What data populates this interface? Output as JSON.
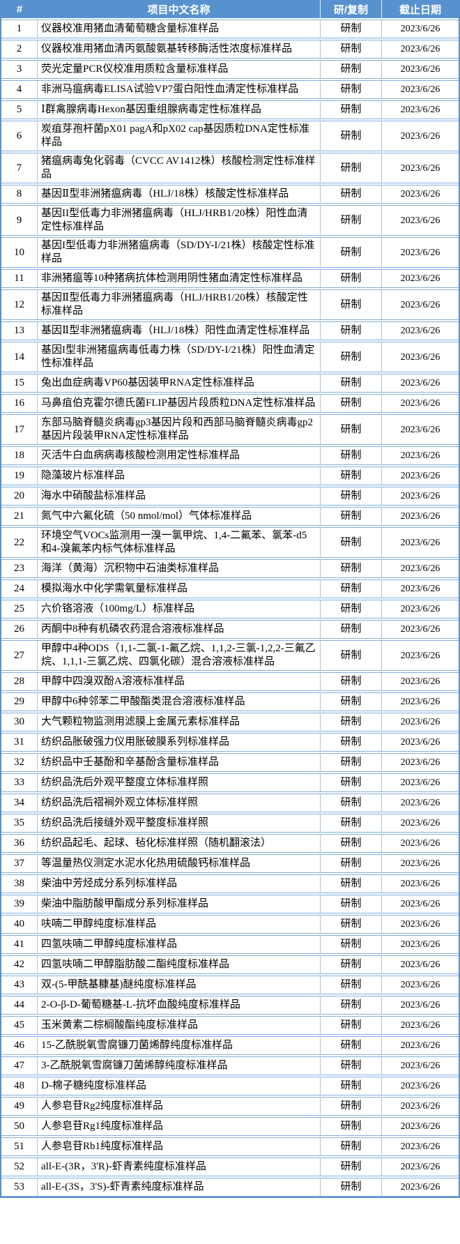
{
  "colors": {
    "header_bg": "#5892ce",
    "header_text": "#ffffff",
    "row_border": "#7fb0dd",
    "grid_line": "#aac4de",
    "body_text": "#000000"
  },
  "table": {
    "columns": {
      "num_label": "#",
      "name_label": "项目中文名称",
      "type_label": "研/复制",
      "deadline_label": "截止日期"
    },
    "rows": [
      {
        "num": "1",
        "name": "仪器校准用猪血清葡萄糖含量标准样品",
        "type": "研制",
        "deadline": "2023/6/26"
      },
      {
        "num": "2",
        "name": "仪器校准用猪血清丙氨酸氨基转移酶活性浓度标准样品",
        "type": "研制",
        "deadline": "2023/6/26"
      },
      {
        "num": "3",
        "name": "荧光定量PCR仪校准用质粒含量标准样品",
        "type": "研制",
        "deadline": "2023/6/26"
      },
      {
        "num": "4",
        "name": "非洲马瘟病毒ELISA试验VP7蛋白阳性血清定性标准样品",
        "type": "研制",
        "deadline": "2023/6/26"
      },
      {
        "num": "5",
        "name": "Ⅰ群禽腺病毒Hexon基因重组腺病毒定性标准样品",
        "type": "研制",
        "deadline": "2023/6/26"
      },
      {
        "num": "6",
        "name": "炭疽芽孢杆菌pX01 pagA和pX02 cap基因质粒DNA定性标准样品",
        "type": "研制",
        "deadline": "2023/6/26"
      },
      {
        "num": "7",
        "name": "猪瘟病毒兔化弱毒（CVCC AV1412株）核酸检测定性标准样品",
        "type": "研制",
        "deadline": "2023/6/26"
      },
      {
        "num": "8",
        "name": "基因Ⅱ型非洲猪瘟病毒（HLJ/18株）核酸定性标准样品",
        "type": "研制",
        "deadline": "2023/6/26"
      },
      {
        "num": "9",
        "name": "基因II型低毒力非洲猪瘟病毒（HLJ/HRB1/20株）阳性血清定性标准样品",
        "type": "研制",
        "deadline": "2023/6/26"
      },
      {
        "num": "10",
        "name": "基因I型低毒力非洲猪瘟病毒（SD/DY-I/21株）核酸定性标准样品",
        "type": "研制",
        "deadline": "2023/6/26"
      },
      {
        "num": "11",
        "name": "非洲猪瘟等10种猪病抗体检测用阴性猪血清定性标准样品",
        "type": "研制",
        "deadline": "2023/6/26"
      },
      {
        "num": "12",
        "name": "基因Ⅱ型低毒力非洲猪瘟病毒（HLJ/HRB1/20株）核酸定性标准样品",
        "type": "研制",
        "deadline": "2023/6/26"
      },
      {
        "num": "13",
        "name": "基因Ⅱ型非洲猪瘟病毒（HLJ/18株）阳性血清定性标准样品",
        "type": "研制",
        "deadline": "2023/6/26"
      },
      {
        "num": "14",
        "name": "基因I型非洲猪瘟病毒低毒力株（SD/DY-I/21株）阳性血清定性标准样品",
        "type": "研制",
        "deadline": "2023/6/26"
      },
      {
        "num": "15",
        "name": "兔出血症病毒VP60基因装甲RNA定性标准样品",
        "type": "研制",
        "deadline": "2023/6/26"
      },
      {
        "num": "16",
        "name": "马鼻疽伯克霍尔德氏菌FLIP基因片段质粒DNA定性标准样品",
        "type": "研制",
        "deadline": "2023/6/26"
      },
      {
        "num": "17",
        "name": "东部马脑脊髓炎病毒gp3基因片段和西部马脑脊髓炎病毒gp2基因片段装甲RNA定性标准样品",
        "type": "研制",
        "deadline": "2023/6/26"
      },
      {
        "num": "18",
        "name": "灭活牛白血病病毒核酸检测用定性标准样品",
        "type": "研制",
        "deadline": "2023/6/26"
      },
      {
        "num": "19",
        "name": "隐藻玻片标准样品",
        "type": "研制",
        "deadline": "2023/6/26"
      },
      {
        "num": "20",
        "name": "海水中硝酸盐标准样品",
        "type": "研制",
        "deadline": "2023/6/26"
      },
      {
        "num": "21",
        "name": "氮气中六氟化硫（50 nmol/mol）气体标准样品",
        "type": "研制",
        "deadline": "2023/6/26"
      },
      {
        "num": "22",
        "name": "环境空气VOCs监测用一溴一氯甲烷、1,4-二氟苯、氯苯-d5和4-溴氟苯内标气体标准样品",
        "type": "研制",
        "deadline": "2023/6/26"
      },
      {
        "num": "23",
        "name": "海洋（黄海）沉积物中石油类标准样品",
        "type": "研制",
        "deadline": "2023/6/26"
      },
      {
        "num": "24",
        "name": "模拟海水中化学需氧量标准样品",
        "type": "研制",
        "deadline": "2023/6/26"
      },
      {
        "num": "25",
        "name": "六价铬溶液（100mg/L）标准样品",
        "type": "研制",
        "deadline": "2023/6/26"
      },
      {
        "num": "26",
        "name": "丙酮中8种有机磷农药混合溶液标准样品",
        "type": "研制",
        "deadline": "2023/6/26"
      },
      {
        "num": "27",
        "name": "甲醇中4种ODS（1,1-二氯-1-氟乙烷、1,1,2-三氯-1,2,2-三氟乙烷、1,1,1-三氯乙烷、四氯化碳）混合溶液标准样品",
        "type": "研制",
        "deadline": "2023/6/26"
      },
      {
        "num": "28",
        "name": "甲醇中四溴双酚A溶液标准样品",
        "type": "研制",
        "deadline": "2023/6/26"
      },
      {
        "num": "29",
        "name": "甲醇中6种邻苯二甲酸酯类混合溶液标准样品",
        "type": "研制",
        "deadline": "2023/6/26"
      },
      {
        "num": "30",
        "name": "大气颗粒物监测用滤膜上金属元素标准样品",
        "type": "研制",
        "deadline": "2023/6/26"
      },
      {
        "num": "31",
        "name": "纺织品胀破强力仪用胀破膜系列标准样品",
        "type": "研制",
        "deadline": "2023/6/26"
      },
      {
        "num": "32",
        "name": "纺织品中壬基酚和辛基酚含量标准样品",
        "type": "研制",
        "deadline": "2023/6/26"
      },
      {
        "num": "33",
        "name": "纺织品洗后外观平整度立体标准样照",
        "type": "研制",
        "deadline": "2023/6/26"
      },
      {
        "num": "34",
        "name": "纺织品洗后褶裥外观立体标准样照",
        "type": "研制",
        "deadline": "2023/6/26"
      },
      {
        "num": "35",
        "name": "纺织品洗后接缝外观平整度标准样照",
        "type": "研制",
        "deadline": "2023/6/26"
      },
      {
        "num": "36",
        "name": "纺织品起毛、起球、毡化标准样照（随机翻滚法）",
        "type": "研制",
        "deadline": "2023/6/26"
      },
      {
        "num": "37",
        "name": "等温量热仪测定水泥水化热用硫酸钙标准样品",
        "type": "研制",
        "deadline": "2023/6/26"
      },
      {
        "num": "38",
        "name": "柴油中芳烃成分系列标准样品",
        "type": "研制",
        "deadline": "2023/6/26"
      },
      {
        "num": "39",
        "name": "柴油中脂肪酸甲酯成分系列标准样品",
        "type": "研制",
        "deadline": "2023/6/26"
      },
      {
        "num": "40",
        "name": "呋喃二甲醇纯度标准样品",
        "type": "研制",
        "deadline": "2023/6/26"
      },
      {
        "num": "41",
        "name": "四氢呋喃二甲醇纯度标准样品",
        "type": "研制",
        "deadline": "2023/6/26"
      },
      {
        "num": "42",
        "name": "四氢呋喃二甲醇脂肪酸二酯纯度标准样品",
        "type": "研制",
        "deadline": "2023/6/26"
      },
      {
        "num": "43",
        "name": "双-(5-甲酰基糠基)醚纯度标准样品",
        "type": "研制",
        "deadline": "2023/6/26"
      },
      {
        "num": "44",
        "name": "2-O-β-D-葡萄糖基-L-抗坏血酸纯度标准样品",
        "type": "研制",
        "deadline": "2023/6/26"
      },
      {
        "num": "45",
        "name": "玉米黄素二棕榈酸酯纯度标准样品",
        "type": "研制",
        "deadline": "2023/6/26"
      },
      {
        "num": "46",
        "name": "15-乙酰脱氧雪腐镰刀菌烯醇纯度标准样品",
        "type": "研制",
        "deadline": "2023/6/26"
      },
      {
        "num": "47",
        "name": "3-乙酰脱氧雪腐镰刀菌烯醇纯度标准样品",
        "type": "研制",
        "deadline": "2023/6/26"
      },
      {
        "num": "48",
        "name": "D-棉子糖纯度标准样品",
        "type": "研制",
        "deadline": "2023/6/26"
      },
      {
        "num": "49",
        "name": "人参皂苷Rg2纯度标准样品",
        "type": "研制",
        "deadline": "2023/6/26"
      },
      {
        "num": "50",
        "name": "人参皂苷Rg1纯度标准样品",
        "type": "研制",
        "deadline": "2023/6/26"
      },
      {
        "num": "51",
        "name": "人参皂苷Rb1纯度标准样品",
        "type": "研制",
        "deadline": "2023/6/26"
      },
      {
        "num": "52",
        "name": "all-E-(3R，3'R)-虾青素纯度标准样品",
        "type": "研制",
        "deadline": "2023/6/26"
      },
      {
        "num": "53",
        "name": "all-E-(3S，3'S)-虾青素纯度标准样品",
        "type": "研制",
        "deadline": "2023/6/26"
      }
    ]
  }
}
